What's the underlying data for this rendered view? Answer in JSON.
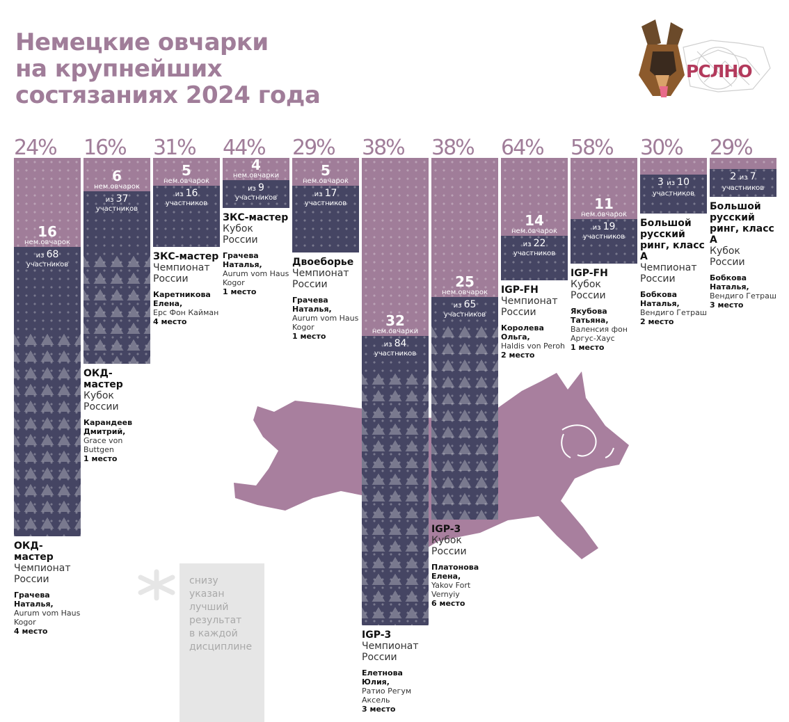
{
  "title": {
    "lines": [
      "Немецкие овчарки",
      "на крупнейших",
      "состязаниях 2024 года"
    ]
  },
  "logo": {
    "text": "РСЛНО"
  },
  "note": {
    "lines": [
      "снизу",
      "указан",
      "лучший",
      "результат",
      "в каждой",
      "дисциплине"
    ]
  },
  "labels": {
    "of": "из",
    "dogs": "нем.овчарок",
    "dogs_alt": "нем.овчарки",
    "participants": "участников"
  },
  "colors": {
    "accent": "#a07d99",
    "dark": "#454563",
    "logo_red": "#b33a5c",
    "note_bg": "#e6e6e6"
  },
  "chart_data": {
    "type": "bar",
    "title": "Немецкие овчарки на крупнейших состязаниях 2024 года",
    "ylabel": "",
    "xlabel": "",
    "series_meaning": [
      "немецкие овчарки",
      "всего участников"
    ],
    "items": [
      {
        "pct": "24%",
        "dogs": 16,
        "total": 68,
        "dogs_word": "нем.овчарок",
        "event": "ОКД-мастер",
        "competition": "Чемпионат России",
        "owner": "Грачева Наталья,",
        "dog": "Aurum vom Haus Kogor",
        "place": "4 место"
      },
      {
        "pct": "16%",
        "dogs": 6,
        "total": 37,
        "dogs_word": "нем.овчарок",
        "event": "ОКД-мастер",
        "competition": "Кубок России",
        "owner": "Карандеев Дмитрий,",
        "dog": "Grace von Buttgen",
        "place": "1 место"
      },
      {
        "pct": "31%",
        "dogs": 5,
        "total": 16,
        "dogs_word": "нем.овчарок",
        "event": "ЗКС-мастер",
        "competition": "Чемпионат России",
        "owner": "Каретникова Елена,",
        "dog": "Ерс Фон Кайман",
        "place": "4 место"
      },
      {
        "pct": "44%",
        "dogs": 4,
        "total": 9,
        "dogs_word": "нем.овчарки",
        "event": "ЗКС-мастер",
        "competition": "Кубок России",
        "owner": "Грачева Наталья,",
        "dog": "Aurum vom Haus Kogor",
        "place": "1 место"
      },
      {
        "pct": "29%",
        "dogs": 5,
        "total": 17,
        "dogs_word": "нем.овчарок",
        "event": "Двоеборье",
        "competition": "Чемпионат России",
        "owner": "Грачева Наталья,",
        "dog": "Aurum vom Haus Kogor",
        "place": "1 место"
      },
      {
        "pct": "38%",
        "dogs": 32,
        "total": 84,
        "dogs_word": "нем.овчарки",
        "event": "IGP-3",
        "competition": "Чемпионат России",
        "owner": "Елетнова Юлия,",
        "dog": "Ратио Регум Аксель",
        "place": "3 место"
      },
      {
        "pct": "38%",
        "dogs": 25,
        "total": 65,
        "dogs_word": "нем.овчарок",
        "event": "IGP-3",
        "competition": "Кубок России",
        "owner": "Платонова Елена,",
        "dog": "Yakov Fort Vernyiy",
        "place": "6 место"
      },
      {
        "pct": "64%",
        "dogs": 14,
        "total": 22,
        "dogs_word": "нем.овчарок",
        "event": "IGP-FH",
        "competition": "Чемпионат России",
        "owner": "Королева Ольга,",
        "dog": "Haldis von Peroh",
        "place": "2 место"
      },
      {
        "pct": "58%",
        "dogs": 11,
        "total": 19,
        "dogs_word": "нем.овчарок",
        "event": "IGP-FH",
        "competition": "Кубок России",
        "owner": "Якубова Татьяна,",
        "dog": "Валенсия фон Аргус-Хаус",
        "place": "1 место"
      },
      {
        "pct": "30%",
        "dogs": 3,
        "total": 10,
        "dogs_word": "",
        "event": "Большой русский ринг, класс А",
        "competition": "Чемпионат России",
        "owner": "Бобкова Наталья,",
        "dog": "Вендиго Гетраш",
        "place": "2 место"
      },
      {
        "pct": "29%",
        "dogs": 2,
        "total": 7,
        "dogs_word": "",
        "event": "Большой русский ринг, класс А",
        "competition": "Кубок России",
        "owner": "Бобкова Наталья,",
        "dog": "Вендиго Гетраш",
        "place": "3 место"
      }
    ]
  }
}
